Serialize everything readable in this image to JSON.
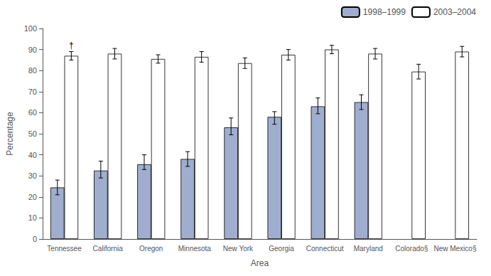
{
  "chart_data": {
    "type": "bar",
    "xlabel": "Area",
    "ylabel": "Percentage",
    "categories": [
      "Tennessee",
      "California",
      "Oregon",
      "Minnesota",
      "New York",
      "Georgia",
      "Connecticut",
      "Maryland",
      "Colorado§",
      "New Mexico§"
    ],
    "series": [
      {
        "name": "1998–1999",
        "color": "#9faece",
        "values": [
          24.5,
          32.5,
          35.5,
          38.0,
          53.0,
          58.0,
          63.0,
          65.0,
          null,
          null
        ],
        "errors_low": [
          3.5,
          3.5,
          2.5,
          3.5,
          3.5,
          3.5,
          3.5,
          3.5,
          null,
          null
        ],
        "errors_high": [
          3.5,
          4.5,
          4.5,
          3.5,
          4.5,
          2.5,
          4.0,
          3.5,
          null,
          null
        ]
      },
      {
        "name": "2003–2004",
        "color": "#ffffff",
        "values": [
          87.0,
          88.0,
          85.5,
          86.5,
          83.5,
          87.5,
          90.0,
          88.0,
          79.5,
          89.0
        ],
        "errors_low": [
          2.0,
          2.5,
          2.0,
          2.5,
          2.5,
          2.5,
          2.0,
          2.5,
          3.5,
          2.5
        ],
        "errors_high": [
          2.0,
          2.5,
          2.0,
          2.5,
          2.5,
          2.5,
          2.0,
          2.5,
          3.5,
          2.5
        ]
      }
    ],
    "annotations": [
      {
        "text": "†",
        "category": "Tennessee",
        "series": "2003–2004"
      }
    ],
    "ylim": [
      0,
      100
    ],
    "yticks": [
      0,
      10,
      20,
      30,
      40,
      50,
      60,
      70,
      80,
      90,
      100
    ],
    "grid": false,
    "legend": "upper right"
  }
}
